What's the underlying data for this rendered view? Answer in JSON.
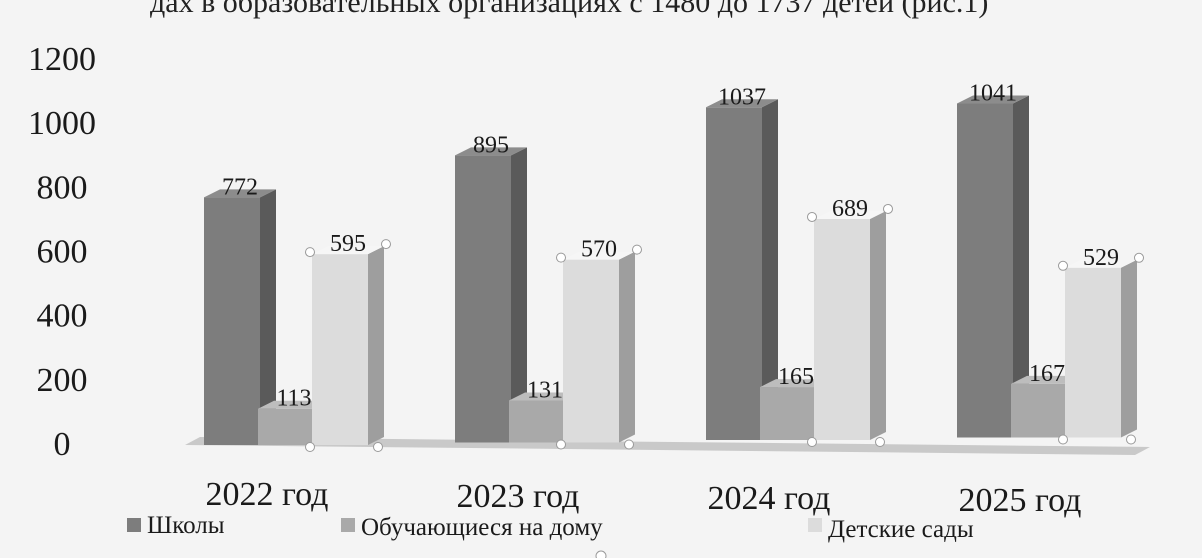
{
  "header": {
    "caption": "дах в образовательных организациях с 1480 до 1737 детей (рис.1)"
  },
  "colors": {
    "schools": "#7d7d7d",
    "home": "#a9a9a9",
    "kindergartens": "#dcdcdc",
    "background": "#f4f4f4"
  },
  "chart_data": {
    "type": "bar",
    "categories": [
      "2022 год",
      "2023 год",
      "2024 год",
      "2025 год"
    ],
    "series": [
      {
        "name": "Школы",
        "values": [
          772,
          895,
          1037,
          1041
        ]
      },
      {
        "name": "Обучающиеся на дому",
        "values": [
          113,
          131,
          165,
          167
        ]
      },
      {
        "name": "Детские сады",
        "values": [
          595,
          570,
          689,
          529
        ]
      }
    ],
    "ylim": [
      0,
      1200
    ],
    "y_ticks": [
      "0",
      "200",
      "400",
      "600",
      "800",
      "1000",
      "1200"
    ],
    "legend_position": "bottom",
    "grid": false
  }
}
